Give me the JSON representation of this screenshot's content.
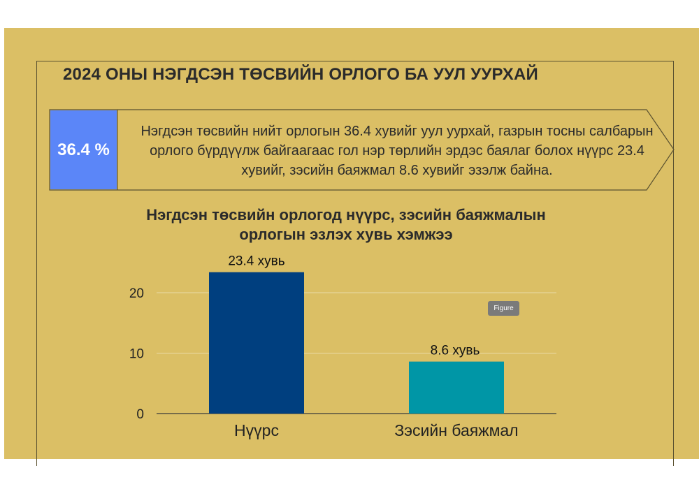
{
  "header": {
    "title": "2024 ОНЫ НЭГДСЭН ТӨСВИЙН ОРЛОГО БА УУЛ УУРХАЙ"
  },
  "callout": {
    "badge": "36.4 %",
    "text": "Нэгдсэн төсвийн нийт орлогын 36.4 хувийг уул уурхай, газрын тосны салбарын орлого бүрдүүлж байгаагаас гол нэр төрлийн эрдэс баялаг болох нүүрс 23.4 хувийг, зэсийн баяжмал 8.6 хувийг эзэлж байна."
  },
  "figure_tag": "Figure",
  "colors": {
    "panel": "#dbbf65",
    "badge": "#5b86f8",
    "bar1": "#003f7f",
    "bar2": "#0096a6"
  },
  "chart_data": {
    "type": "bar",
    "title": "Нэгдсэн төсвийн орлогод нүүрс, зэсийн баяжмалын орлогын эзлэх хувь хэмжээ",
    "title_lines": [
      "Нэгдсэн төсвийн орлогод нүүрс, зэсийн баяжмалын",
      "орлогын эзлэх хувь хэмжээ"
    ],
    "categories": [
      "Нүүрс",
      "Зэсийн баяжмал"
    ],
    "values": [
      23.4,
      8.6
    ],
    "data_labels": [
      "23.4 хувь",
      "8.6 хувь"
    ],
    "bar_colors": [
      "#003f7f",
      "#0096a6"
    ],
    "yticks": [
      0,
      10,
      20
    ],
    "ylim": [
      0,
      25
    ],
    "grid": true,
    "xlabel": "",
    "ylabel": ""
  }
}
